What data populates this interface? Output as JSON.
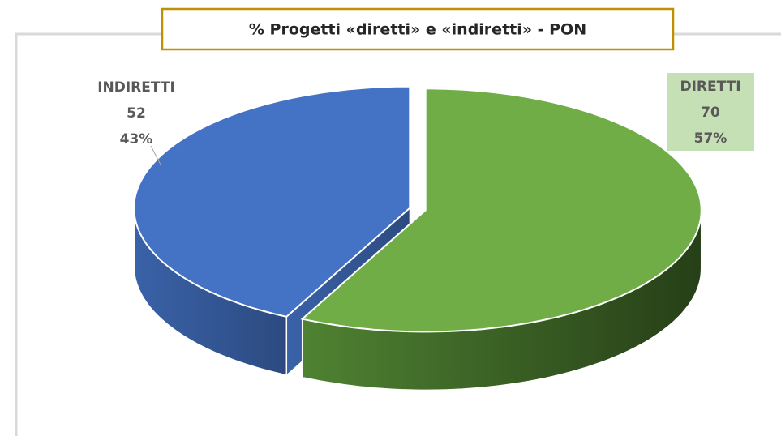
{
  "chart_data": {
    "type": "pie",
    "title": "% Progetti «diretti» e «indiretti»  - PON",
    "categories": [
      "DIRETTI",
      "INDIRETTI"
    ],
    "values": [
      70,
      52
    ],
    "percentages": [
      57,
      43
    ],
    "percentage_labels": [
      "57%",
      "43%"
    ],
    "colors": [
      "#70ad47",
      "#4472c4"
    ]
  }
}
